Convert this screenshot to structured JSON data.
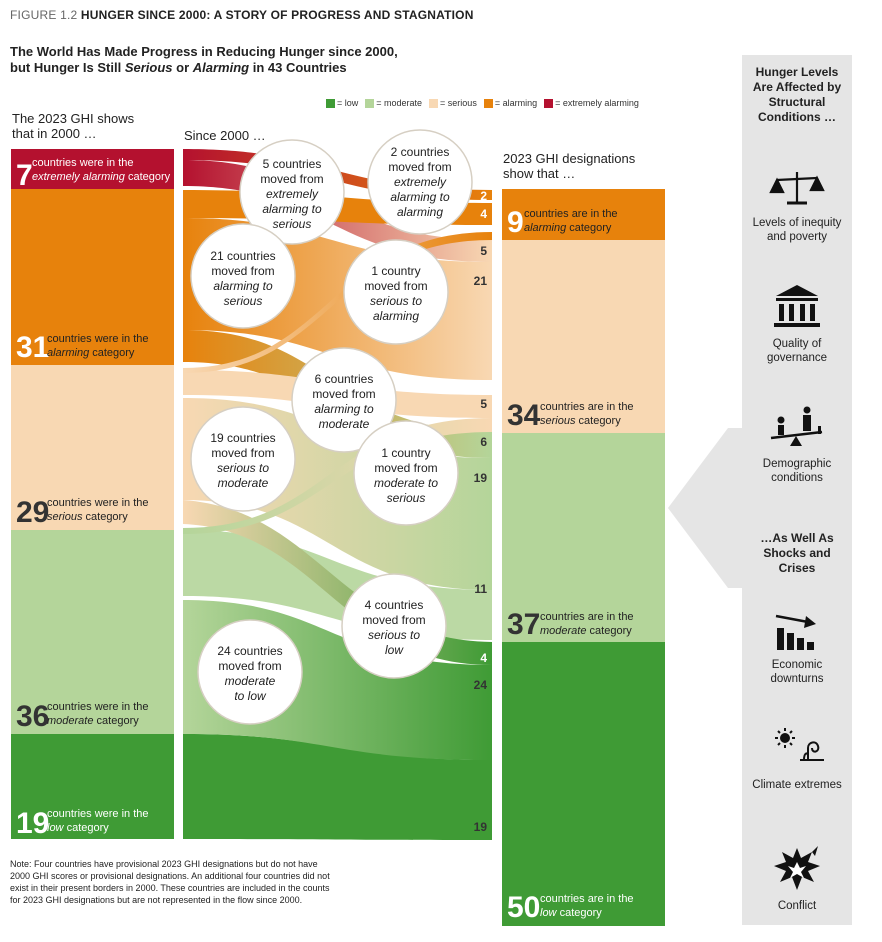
{
  "figure": {
    "number": "FIGURE 1.2",
    "title": "HUNGER SINCE 2000: A STORY OF PROGRESS AND STAGNATION",
    "subtitle_line1": "The World Has Made Progress in Reducing Hunger since 2000,",
    "subtitle_line2_a": "but Hunger Is Still ",
    "subtitle_line2_b": "Serious",
    "subtitle_line2_c": " or ",
    "subtitle_line2_d": "Alarming",
    "subtitle_line2_e": " in 43 Countries"
  },
  "legend": [
    {
      "label": "= low",
      "color": "#3f9b35"
    },
    {
      "label": "= moderate",
      "color": "#b4d59a"
    },
    {
      "label": "= serious",
      "color": "#f8d8b3"
    },
    {
      "label": "= alarming",
      "color": "#e7820c"
    },
    {
      "label": "= extremely alarming",
      "color": "#b4112f"
    }
  ],
  "headers": {
    "left_line1": "The 2023 GHI shows",
    "left_line2": "that in 2000 …",
    "middle": "Since 2000 …",
    "right_line1": "2023 GHI designations",
    "right_line2": "show that …"
  },
  "categories": {
    "extremely_alarming": "#b4112f",
    "alarming": "#e7820c",
    "serious": "#f8d8b3",
    "moderate": "#b4d59a",
    "low": "#3f9b35"
  },
  "left_col": [
    {
      "count": "7",
      "text1": "countries were in the",
      "text2": "extremely alarming",
      "text3": " category",
      "cat": "extremely_alarming"
    },
    {
      "count": "31",
      "text1": "countries were in the",
      "text2": "alarming",
      "text3": " category",
      "cat": "alarming"
    },
    {
      "count": "29",
      "text1": "countries were in the",
      "text2": "serious",
      "text3": " category",
      "cat": "serious"
    },
    {
      "count": "36",
      "text1": "countries were in the",
      "text2": "moderate",
      "text3": " category",
      "cat": "moderate"
    },
    {
      "count": "19",
      "text1": "countries were in the",
      "text2": "low",
      "text3": " category",
      "cat": "low"
    }
  ],
  "right_col": [
    {
      "count": "9",
      "text1": "countries are in the",
      "text2": "alarming",
      "text3": " category",
      "cat": "alarming"
    },
    {
      "count": "34",
      "text1": "countries are in the",
      "text2": "serious",
      "text3": " category",
      "cat": "serious"
    },
    {
      "count": "37",
      "text1": "countries are in the",
      "text2": "moderate",
      "text3": " category",
      "cat": "moderate"
    },
    {
      "count": "50",
      "text1": "countries are in the",
      "text2": "low",
      "text3": " category",
      "cat": "low"
    }
  ],
  "flows": [
    {
      "from": "extremely_alarming",
      "to": "alarming",
      "value": 2
    },
    {
      "from": "extremely_alarming",
      "to": "serious",
      "value": 5
    },
    {
      "from": "alarming",
      "to": "alarming",
      "value": 4
    },
    {
      "from": "alarming",
      "to": "serious",
      "value": 21
    },
    {
      "from": "alarming",
      "to": "moderate",
      "value": 6
    },
    {
      "from": "serious",
      "to": "alarming",
      "value": 1
    },
    {
      "from": "serious",
      "to": "serious",
      "value": 5
    },
    {
      "from": "serious",
      "to": "moderate",
      "value": 19
    },
    {
      "from": "serious",
      "to": "low",
      "value": 4
    },
    {
      "from": "moderate",
      "to": "serious",
      "value": 1
    },
    {
      "from": "moderate",
      "to": "moderate",
      "value": 11
    },
    {
      "from": "moderate",
      "to": "low",
      "value": 24
    },
    {
      "from": "low",
      "to": "low",
      "value": 19
    }
  ],
  "flow_numbers": [
    "2",
    "4",
    "5",
    "21",
    "5",
    "6",
    "19",
    "11",
    "4",
    "24",
    "19"
  ],
  "bubbles": [
    {
      "l1": "5 countries",
      "l2": "moved from",
      "l3": "extremely",
      "l4": "alarming to",
      "l5": "serious"
    },
    {
      "l1": "2 countries",
      "l2": "moved from",
      "l3": "extremely",
      "l4": "alarming to",
      "l5": "alarming"
    },
    {
      "l1": "21 countries",
      "l2": "moved from",
      "l3": "alarming to",
      "l4": "serious"
    },
    {
      "l1": "1 country",
      "l2": "moved from",
      "l3": "serious to",
      "l4": "alarming"
    },
    {
      "l1": "6 countries",
      "l2": "moved from",
      "l3": "alarming to",
      "l4": "moderate"
    },
    {
      "l1": "19 countries",
      "l2": "moved from",
      "l3": "serious to",
      "l4": "moderate"
    },
    {
      "l1": "1 country",
      "l2": "moved from",
      "l3": "moderate to",
      "l4": "serious"
    },
    {
      "l1": "4 countries",
      "l2": "moved from",
      "l3": "serious to",
      "l4": "low"
    },
    {
      "l1": "24 countries",
      "l2": "moved from",
      "l3": "moderate",
      "l4": "to low"
    }
  ],
  "note": "Note: Four countries have provisional 2023 GHI designations but do not have 2000 GHI scores or provisional designations. An additional four countries did not exist in their present borders in 2000. These countries are included in the counts for 2023 GHI designations but are not represented in the flow since 2000.",
  "sidebar": {
    "title1": "Hunger Levels Are Affected by Structural Conditions …",
    "title2": "…As Well As Shocks and Crises",
    "items": [
      {
        "label": "Levels of inequity and poverty",
        "icon": "scales-icon"
      },
      {
        "label": "Quality of governance",
        "icon": "building-icon"
      },
      {
        "label": "Demographic conditions",
        "icon": "seesaw-icon"
      },
      {
        "label": "Economic downturns",
        "icon": "downturn-icon"
      },
      {
        "label": "Climate extremes",
        "icon": "climate-icon"
      },
      {
        "label": "Conflict",
        "icon": "explosion-icon"
      }
    ]
  }
}
